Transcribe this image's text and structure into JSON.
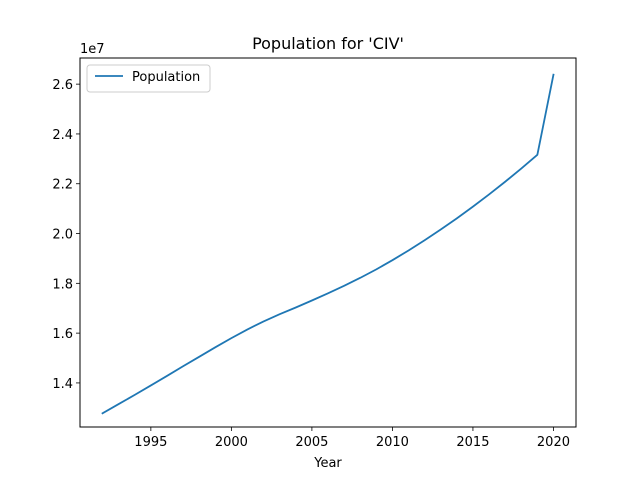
{
  "chart_data": {
    "type": "line",
    "title": "Population for 'CIV'",
    "xlabel": "Year",
    "ylabel": "",
    "y_offset_label": "1e7",
    "y_scale": 10000000,
    "xlim": [
      1990.6,
      2021.4
    ],
    "ylim": [
      12230000,
      27050000
    ],
    "x_ticks": [
      1995,
      2000,
      2005,
      2010,
      2015,
      2020
    ],
    "y_ticks": [
      14000000,
      16000000,
      18000000,
      20000000,
      22000000,
      24000000,
      26000000
    ],
    "grid": false,
    "legend_position": "top-left",
    "x": [
      1992,
      1993,
      1994,
      1995,
      1996,
      1997,
      1998,
      1999,
      2000,
      2001,
      2002,
      2003,
      2004,
      2005,
      2006,
      2007,
      2008,
      2009,
      2010,
      2011,
      2012,
      2013,
      2014,
      2015,
      2016,
      2017,
      2018,
      2019,
      2020
    ],
    "series": [
      {
        "name": "Population",
        "color": "#1f77b4",
        "values": [
          12780000,
          13150000,
          13520000,
          13900000,
          14280000,
          14670000,
          15050000,
          15430000,
          15800000,
          16150000,
          16470000,
          16760000,
          17030000,
          17310000,
          17600000,
          17900000,
          18220000,
          18560000,
          18930000,
          19320000,
          19730000,
          20160000,
          20610000,
          21080000,
          21570000,
          22080000,
          22610000,
          23160000,
          26380000
        ]
      }
    ]
  }
}
